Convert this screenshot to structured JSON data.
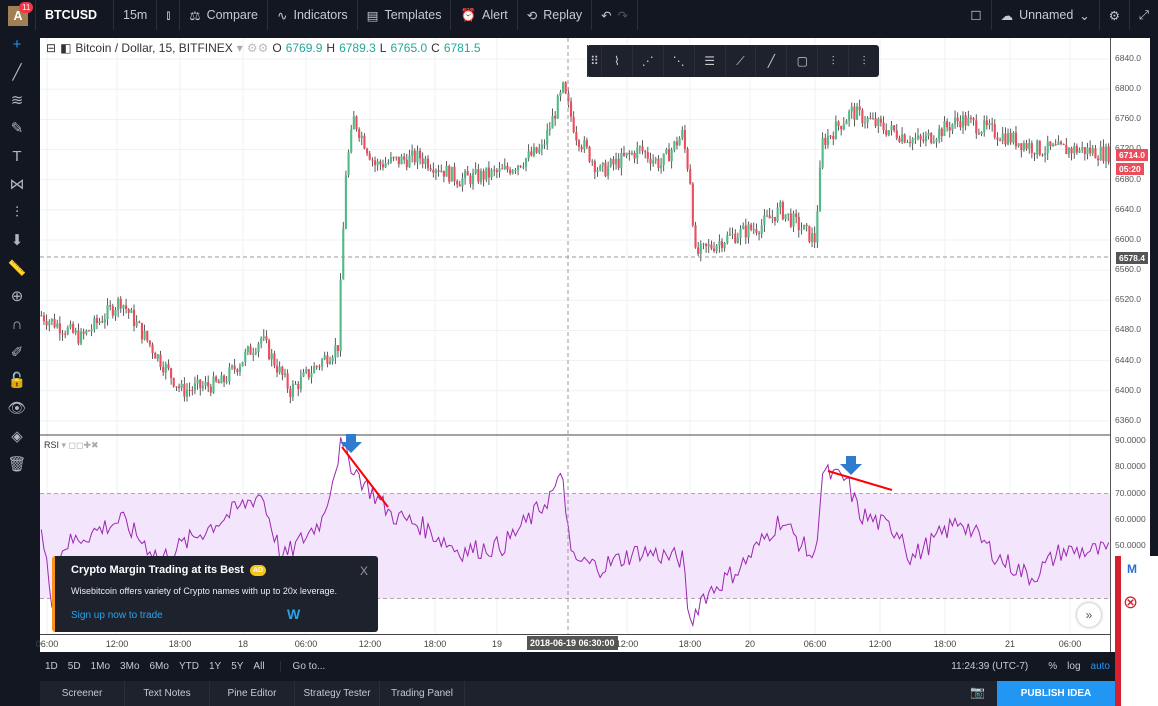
{
  "header": {
    "avatar": "A",
    "notifications": "11",
    "symbol": "BTCUSD",
    "interval": "15m",
    "compare": "Compare",
    "indicators": "Indicators",
    "templates": "Templates",
    "alert": "Alert",
    "replay": "Replay",
    "layout_name": "Unnamed"
  },
  "legend": {
    "title": "Bitcoin / Dollar, 15, BITFINEX",
    "o_label": "O",
    "o": "6769.9",
    "h_label": "H",
    "h": "6789.3",
    "l_label": "L",
    "l": "6765.0",
    "c_label": "C",
    "c": "6781.5"
  },
  "rsi_label": "RSI",
  "price_axis": [
    "6840.0",
    "6800.0",
    "6760.0",
    "6720.0",
    "6680.0",
    "6640.0",
    "6600.0",
    "6560.0",
    "6520.0",
    "6480.0",
    "6440.0",
    "6400.0",
    "6360.0"
  ],
  "rsi_axis": [
    "90.0000",
    "80.0000",
    "70.0000",
    "60.0000",
    "50.0000"
  ],
  "last_price": "6714.0",
  "countdown": "05:20",
  "crosshair_price": "6578.4",
  "time_axis": [
    "06:00",
    "12:00",
    "18:00",
    "18",
    "06:00",
    "12:00",
    "18:00",
    "19",
    "12:00",
    "18:00",
    "20",
    "06:00",
    "12:00",
    "18:00",
    "21",
    "06:00"
  ],
  "crosshair_time": "2018-06-19 06:30:00",
  "ranges": [
    "1D",
    "5D",
    "1Mo",
    "3Mo",
    "6Mo",
    "YTD",
    "1Y",
    "5Y",
    "All"
  ],
  "goto": "Go to...",
  "clock": "11:24:39 (UTC-7)",
  "pct": "%",
  "log": "log",
  "auto": "auto",
  "tabs": [
    "Screener",
    "Text Notes",
    "Pine Editor",
    "Strategy Tester",
    "Trading Panel"
  ],
  "publish": "PUBLISH IDEA",
  "ad": {
    "title": "Crypto Margin Trading at its Best",
    "badge": "AD",
    "desc": "Wisebitcoin offers variety of Crypto names with up to 20x leverage.",
    "link": "Sign up now to trade",
    "close": "X"
  },
  "colors": {
    "up": "#53b987",
    "down": "#eb4d5c",
    "rsi": "#9c27b0",
    "band": "#f3e5fc",
    "annotation": "#ff0000",
    "arrow": "#2e7bcf"
  },
  "chart_data": {
    "type": "candlestick",
    "bars": 404,
    "price_keyframes": [
      [
        0,
        6500
      ],
      [
        15,
        6470
      ],
      [
        30,
        6520
      ],
      [
        45,
        6440
      ],
      [
        53,
        6400
      ],
      [
        68,
        6410
      ],
      [
        83,
        6470
      ],
      [
        94,
        6400
      ],
      [
        106,
        6440
      ],
      [
        112,
        6460
      ],
      [
        115,
        6690
      ],
      [
        118,
        6760
      ],
      [
        126,
        6700
      ],
      [
        143,
        6710
      ],
      [
        158,
        6680
      ],
      [
        174,
        6690
      ],
      [
        189,
        6720
      ],
      [
        197,
        6800
      ],
      [
        202,
        6740
      ],
      [
        211,
        6690
      ],
      [
        226,
        6720
      ],
      [
        234,
        6700
      ],
      [
        242,
        6740
      ],
      [
        245,
        6680
      ],
      [
        247,
        6580
      ],
      [
        257,
        6600
      ],
      [
        272,
        6620
      ],
      [
        279,
        6640
      ],
      [
        292,
        6600
      ],
      [
        295,
        6730
      ],
      [
        306,
        6770
      ],
      [
        317,
        6750
      ],
      [
        332,
        6730
      ],
      [
        347,
        6760
      ],
      [
        362,
        6740
      ],
      [
        377,
        6720
      ],
      [
        392,
        6720
      ],
      [
        403,
        6714
      ]
    ],
    "rsi_keyframes": [
      [
        0,
        55
      ],
      [
        4,
        30
      ],
      [
        8,
        50
      ],
      [
        30,
        60
      ],
      [
        45,
        45
      ],
      [
        83,
        70
      ],
      [
        91,
        45
      ],
      [
        106,
        60
      ],
      [
        113,
        88
      ],
      [
        121,
        75
      ],
      [
        132,
        62
      ],
      [
        143,
        58
      ],
      [
        158,
        48
      ],
      [
        174,
        50
      ],
      [
        189,
        65
      ],
      [
        197,
        76
      ],
      [
        200,
        45
      ],
      [
        211,
        42
      ],
      [
        226,
        48
      ],
      [
        242,
        45
      ],
      [
        245,
        20
      ],
      [
        249,
        30
      ],
      [
        264,
        42
      ],
      [
        279,
        60
      ],
      [
        292,
        45
      ],
      [
        295,
        78
      ],
      [
        304,
        75
      ],
      [
        309,
        62
      ],
      [
        325,
        55
      ],
      [
        328,
        45
      ],
      [
        347,
        60
      ],
      [
        362,
        45
      ],
      [
        374,
        38
      ],
      [
        385,
        48
      ],
      [
        403,
        48
      ]
    ],
    "price_range": [
      6340,
      6860
    ],
    "rsi_range": [
      0,
      95
    ],
    "rsi_bands": [
      30,
      70
    ]
  }
}
